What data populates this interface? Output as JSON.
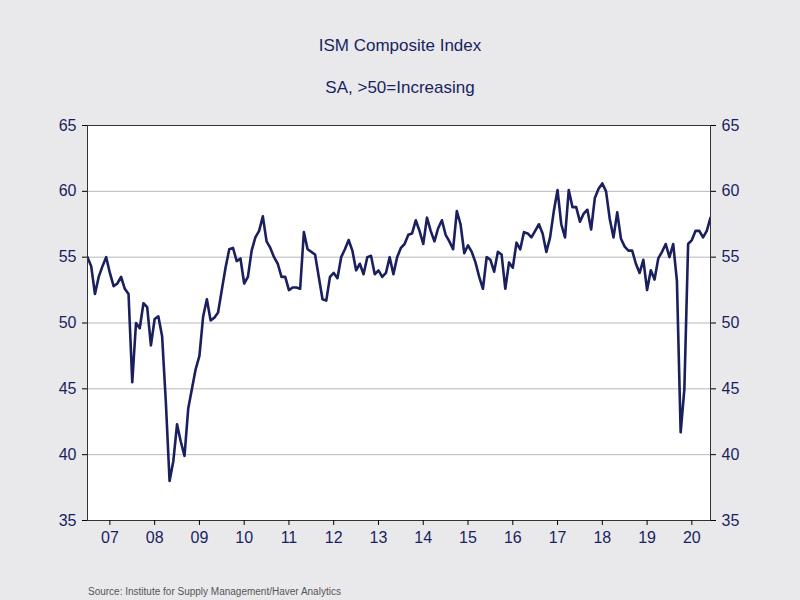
{
  "chart_data": {
    "type": "line",
    "title": "ISM Composite Index",
    "subtitle": "SA, >50=Increasing",
    "source": "Source:  Institute for Supply Management/Haver Analytics",
    "color": "#1a1f5e",
    "grid": true,
    "categories": [
      null,
      null,
      null,
      null,
      null,
      null,
      "07",
      null,
      null,
      null,
      null,
      null,
      null,
      null,
      null,
      null,
      null,
      null,
      "08",
      null,
      null,
      null,
      null,
      null,
      null,
      null,
      null,
      null,
      null,
      null,
      "09",
      null,
      null,
      null,
      null,
      null,
      null,
      null,
      null,
      null,
      null,
      null,
      "10",
      null,
      null,
      null,
      null,
      null,
      null,
      null,
      null,
      null,
      null,
      null,
      "11",
      null,
      null,
      null,
      null,
      null,
      null,
      null,
      null,
      null,
      null,
      null,
      "12",
      null,
      null,
      null,
      null,
      null,
      null,
      null,
      null,
      null,
      null,
      null,
      "13",
      null,
      null,
      null,
      null,
      null,
      null,
      null,
      null,
      null,
      null,
      null,
      "14",
      null,
      null,
      null,
      null,
      null,
      null,
      null,
      null,
      null,
      null,
      null,
      "15",
      null,
      null,
      null,
      null,
      null,
      null,
      null,
      null,
      null,
      null,
      null,
      "16",
      null,
      null,
      null,
      null,
      null,
      null,
      null,
      null,
      null,
      null,
      null,
      "17",
      null,
      null,
      null,
      null,
      null,
      null,
      null,
      null,
      null,
      null,
      null,
      "18",
      null,
      null,
      null,
      null,
      null,
      null,
      null,
      null,
      null,
      null,
      null,
      "19",
      null,
      null,
      null,
      null,
      null,
      null,
      null,
      null,
      null,
      null,
      null,
      "20",
      null,
      null,
      null,
      null,
      null
    ],
    "values": [
      55,
      54.3,
      52.2,
      53.5,
      54.3,
      55,
      53.8,
      52.8,
      53,
      53.5,
      52.6,
      52.2,
      45.5,
      50,
      49.6,
      51.5,
      51.2,
      48.3,
      50.3,
      50.5,
      49,
      44,
      38,
      39.5,
      42.3,
      41,
      39.9,
      43.5,
      45,
      46.5,
      47.5,
      50.5,
      51.8,
      50.2,
      50.4,
      50.8,
      52.5,
      54.2,
      55.6,
      55.7,
      54.7,
      54.9,
      53,
      53.5,
      55.5,
      56.5,
      57,
      58.1,
      56.2,
      55.7,
      55,
      54.5,
      53.5,
      53.5,
      52.5,
      52.7,
      52.7,
      52.6,
      56.9,
      55.6,
      55.4,
      55.2,
      53.5,
      51.8,
      51.7,
      53.5,
      53.8,
      53.4,
      55,
      55.6,
      56.3,
      55.5,
      54,
      54.5,
      53.7,
      55,
      55.1,
      53.7,
      54,
      53.5,
      53.8,
      55,
      53.7,
      55,
      55.7,
      56,
      56.7,
      56.8,
      57.8,
      57,
      56,
      58,
      57,
      56.2,
      57.2,
      57.8,
      56.7,
      56.2,
      55.6,
      58.5,
      57.5,
      55.3,
      55.9,
      55.4,
      54.6,
      53.5,
      52.6,
      55,
      54.8,
      53.9,
      55.4,
      55.2,
      52.6,
      54.6,
      54.2,
      56.1,
      55.6,
      56.9,
      56.8,
      56.5,
      57,
      57.5,
      56.8,
      55.4,
      56.5,
      58.5,
      60.1,
      57.5,
      56.5,
      60.1,
      58.8,
      58.8,
      57.7,
      58.3,
      58.6,
      57.1,
      59.5,
      60.2,
      60.6,
      60,
      57.9,
      56.5,
      58.4,
      56.4,
      55.8,
      55.5,
      55.5,
      54.5,
      53.8,
      54.8,
      52.5,
      54,
      53.3,
      54.9,
      55.4,
      56,
      55,
      56,
      53.2,
      41.7,
      45,
      56,
      56.3,
      57,
      57,
      56.5,
      57,
      58
    ],
    "ylim": [
      35,
      65
    ],
    "yticks": [
      35,
      40,
      45,
      50,
      55,
      60,
      65
    ]
  }
}
